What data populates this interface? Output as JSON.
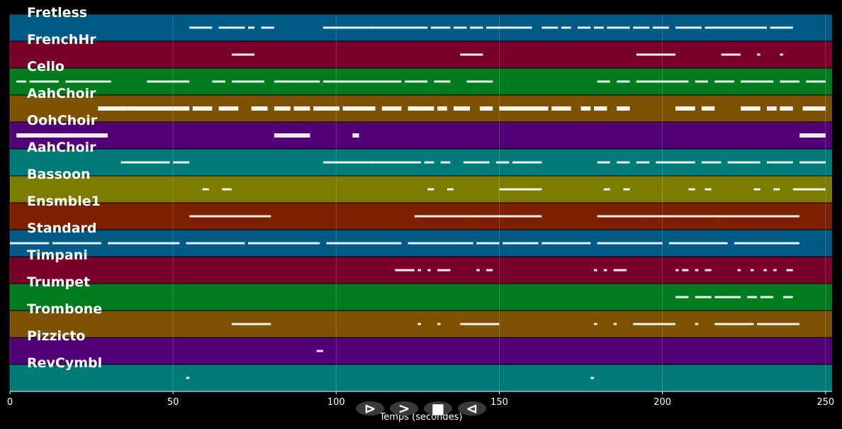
{
  "chart_data": {
    "type": "scatter",
    "title": "",
    "xlabel": "Temps (secondes)",
    "ylabel": "",
    "xlim": [
      0,
      252
    ],
    "x_ticks": [
      0,
      50,
      100,
      150,
      200,
      250
    ],
    "grid": true,
    "tracks": [
      {
        "name": "Fretless",
        "color": "#005a86",
        "segments": [
          [
            55,
            58
          ],
          [
            58,
            62
          ],
          [
            64,
            72
          ],
          [
            73,
            75
          ],
          [
            77,
            81
          ],
          [
            96,
            110
          ],
          [
            110,
            128
          ],
          [
            129,
            135
          ],
          [
            136,
            140
          ],
          [
            141,
            145
          ],
          [
            146,
            150
          ],
          [
            150,
            160
          ],
          [
            163,
            168
          ],
          [
            169,
            172
          ],
          [
            174,
            178
          ],
          [
            179,
            182
          ],
          [
            183,
            190
          ],
          [
            191,
            196
          ],
          [
            197,
            202
          ],
          [
            204,
            212
          ],
          [
            213,
            220
          ],
          [
            220,
            232
          ],
          [
            233,
            240
          ]
        ]
      },
      {
        "name": "FrenchHr",
        "color": "#7a0027",
        "segments": [
          [
            68,
            75
          ],
          [
            138,
            145
          ],
          [
            192,
            204
          ],
          [
            218,
            224
          ],
          [
            229,
            230
          ],
          [
            236,
            237
          ]
        ]
      },
      {
        "name": "Cello",
        "color": "#007c1e",
        "segments": [
          [
            2,
            5
          ],
          [
            6,
            15
          ],
          [
            17,
            31
          ],
          [
            42,
            55
          ],
          [
            62,
            66
          ],
          [
            68,
            78
          ],
          [
            81,
            95
          ],
          [
            96,
            120
          ],
          [
            121,
            128
          ],
          [
            130,
            135
          ],
          [
            140,
            148
          ],
          [
            180,
            184
          ],
          [
            186,
            190
          ],
          [
            192,
            208
          ],
          [
            210,
            214
          ],
          [
            216,
            222
          ],
          [
            224,
            234
          ],
          [
            236,
            242
          ],
          [
            244,
            250
          ]
        ]
      },
      {
        "name": "AahChoir",
        "color": "#7c5200",
        "segments": [
          [
            27,
            36
          ],
          [
            36,
            50
          ],
          [
            50,
            55
          ],
          [
            56,
            62
          ],
          [
            64,
            70
          ],
          [
            74,
            79
          ],
          [
            81,
            86
          ],
          [
            87,
            92
          ],
          [
            93,
            101
          ],
          [
            102,
            112
          ],
          [
            114,
            120
          ],
          [
            122,
            130
          ],
          [
            131,
            134
          ],
          [
            136,
            141
          ],
          [
            144,
            148
          ],
          [
            150,
            165
          ],
          [
            166,
            172
          ],
          [
            175,
            178
          ],
          [
            179,
            183
          ],
          [
            186,
            190
          ],
          [
            204,
            210
          ],
          [
            212,
            216
          ],
          [
            224,
            230
          ],
          [
            232,
            235
          ],
          [
            236,
            240
          ],
          [
            243,
            250
          ]
        ]
      },
      {
        "name": "OohChoir",
        "color": "#520078",
        "segments": [
          [
            2,
            30
          ],
          [
            81,
            92
          ],
          [
            105,
            107
          ],
          [
            242,
            250
          ]
        ]
      },
      {
        "name": "AahChoir",
        "color": "#007a78",
        "segments": [
          [
            34,
            49
          ],
          [
            50,
            55
          ],
          [
            96,
            110
          ],
          [
            110,
            126
          ],
          [
            127,
            130
          ],
          [
            132,
            135
          ],
          [
            139,
            147
          ],
          [
            149,
            153
          ],
          [
            154,
            163
          ],
          [
            180,
            184
          ],
          [
            186,
            190
          ],
          [
            192,
            196
          ],
          [
            198,
            210
          ],
          [
            212,
            218
          ],
          [
            220,
            230
          ],
          [
            232,
            240
          ],
          [
            242,
            250
          ]
        ]
      },
      {
        "name": "Bassoon",
        "color": "#7c7c00",
        "segments": [
          [
            59,
            61
          ],
          [
            65,
            68
          ],
          [
            128,
            130
          ],
          [
            134,
            136
          ],
          [
            150,
            163
          ],
          [
            182,
            184
          ],
          [
            188,
            190
          ],
          [
            208,
            210
          ],
          [
            213,
            215
          ],
          [
            228,
            230
          ],
          [
            234,
            236
          ],
          [
            240,
            250
          ]
        ]
      },
      {
        "name": "Ensmble1",
        "color": "#7c2000",
        "segments": [
          [
            55,
            68
          ],
          [
            68,
            80
          ],
          [
            124,
            140
          ],
          [
            140,
            150
          ],
          [
            150,
            163
          ],
          [
            180,
            195
          ],
          [
            195,
            205
          ],
          [
            205,
            216
          ],
          [
            216,
            232
          ],
          [
            232,
            242
          ]
        ]
      },
      {
        "name": "Standard",
        "color": "#005a86",
        "segments": [
          [
            0,
            12
          ],
          [
            13,
            28
          ],
          [
            30,
            52
          ],
          [
            54,
            72
          ],
          [
            73,
            95
          ],
          [
            97,
            120
          ],
          [
            122,
            142
          ],
          [
            143,
            150
          ],
          [
            151,
            162
          ],
          [
            163,
            178
          ],
          [
            180,
            200
          ],
          [
            202,
            220
          ],
          [
            222,
            242
          ]
        ]
      },
      {
        "name": "Timpani",
        "color": "#7a0027",
        "segments": [
          [
            118,
            124
          ],
          [
            125,
            126
          ],
          [
            128,
            129
          ],
          [
            131,
            135
          ],
          [
            143,
            144
          ],
          [
            146,
            148
          ],
          [
            179,
            180
          ],
          [
            182,
            183
          ],
          [
            185,
            189
          ],
          [
            204,
            205
          ],
          [
            206,
            208
          ],
          [
            210,
            211
          ],
          [
            213,
            215
          ],
          [
            223,
            224
          ],
          [
            227,
            228
          ],
          [
            231,
            232
          ],
          [
            234,
            235
          ],
          [
            238,
            240
          ]
        ]
      },
      {
        "name": "Trumpet",
        "color": "#007c1e",
        "segments": [
          [
            204,
            208
          ],
          [
            210,
            215
          ],
          [
            216,
            224
          ],
          [
            226,
            229
          ],
          [
            230,
            234
          ],
          [
            237,
            240
          ]
        ]
      },
      {
        "name": "Trombone",
        "color": "#7c5200",
        "segments": [
          [
            68,
            80
          ],
          [
            125,
            126
          ],
          [
            131,
            132
          ],
          [
            138,
            150
          ],
          [
            179,
            180
          ],
          [
            185,
            186
          ],
          [
            191,
            204
          ],
          [
            210,
            211
          ],
          [
            216,
            228
          ],
          [
            229,
            242
          ]
        ]
      },
      {
        "name": "Pizzicto",
        "color": "#520078",
        "segments": [
          [
            94,
            95
          ],
          [
            95,
            96
          ]
        ]
      },
      {
        "name": "RevCymbl",
        "color": "#007a78",
        "segments": [
          [
            54,
            55
          ],
          [
            178,
            179
          ]
        ]
      }
    ]
  },
  "controls": {
    "buttons": [
      {
        "name": "play-button",
        "glyph": "⊳"
      },
      {
        "name": "forward-button",
        "glyph": ">"
      },
      {
        "name": "stop-button",
        "glyph": "■"
      },
      {
        "name": "rewind-button",
        "glyph": "⊲"
      }
    ]
  }
}
